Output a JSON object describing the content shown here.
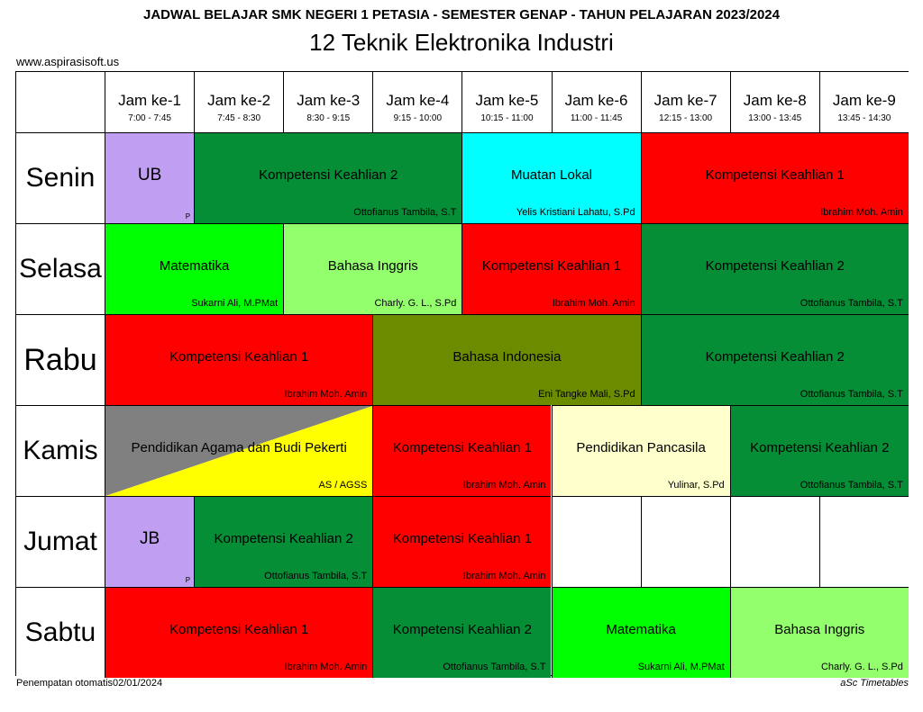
{
  "header": {
    "title": "JADWAL BELAJAR SMK NEGERI 1 PETASIA - SEMESTER GENAP - TAHUN PELAJARAN 2023/2024",
    "class_name": "12 Teknik Elektronika Industri",
    "website": "www.aspirasisoft.us"
  },
  "footer": {
    "left": "Penempatan otomatis02/01/2024",
    "right": "aSc Timetables"
  },
  "colors": {
    "ub_jb": "#c09ff2",
    "kk2": "#068e36",
    "muatan_lokal": "#00ffff",
    "kk1": "#fe0000",
    "matematika": "#00ff00",
    "bahasa_inggris": "#93ff6d",
    "bahasa_indonesia": "#6c8c00",
    "pendidikan_pancasila": "#ffffcc",
    "pab_gray": "#808080",
    "pab_yellow": "#ffff00"
  },
  "periods": [
    {
      "label": "Jam ke-1",
      "time": "7:00 - 7:45"
    },
    {
      "label": "Jam ke-2",
      "time": "7:45 - 8:30"
    },
    {
      "label": "Jam ke-3",
      "time": "8:30 - 9:15"
    },
    {
      "label": "Jam ke-4",
      "time": "9:15 - 10:00"
    },
    {
      "label": "Jam ke-5",
      "time": "10:15 - 11:00"
    },
    {
      "label": "Jam ke-6",
      "time": "11:00 - 11:45"
    },
    {
      "label": "Jam ke-7",
      "time": "12:15 - 13:00"
    },
    {
      "label": "Jam ke-8",
      "time": "13:00 - 13:45"
    },
    {
      "label": "Jam ke-9",
      "time": "13:45 - 14:30"
    }
  ],
  "days": [
    {
      "name": "Senin",
      "lessons": [
        {
          "start": 1,
          "span": 1,
          "subject": "UB",
          "teacher": "",
          "mark": "P",
          "color": "ub_jb"
        },
        {
          "start": 2,
          "span": 3,
          "subject": "Kompetensi Keahlian 2",
          "teacher": "Ottofianus Tambila, S.T",
          "color": "kk2"
        },
        {
          "start": 5,
          "span": 2,
          "subject": "Muatan Lokal",
          "teacher": "Yelis Kristiani Lahatu, S.Pd",
          "color": "muatan_lokal"
        },
        {
          "start": 7,
          "span": 3,
          "subject": "Kompetensi Keahlian 1",
          "teacher": "Ibrahim Moh. Amin",
          "color": "kk1"
        }
      ]
    },
    {
      "name": "Selasa",
      "lessons": [
        {
          "start": 1,
          "span": 2,
          "subject": "Matematika",
          "teacher": "Sukarni Ali, M.PMat",
          "color": "matematika"
        },
        {
          "start": 3,
          "span": 2,
          "subject": "Bahasa Inggris",
          "teacher": "Charly. G. L., S.Pd",
          "color": "bahasa_inggris"
        },
        {
          "start": 5,
          "span": 2,
          "subject": "Kompetensi Keahlian 1",
          "teacher": "Ibrahim Moh. Amin",
          "color": "kk1"
        },
        {
          "start": 7,
          "span": 3,
          "subject": "Kompetensi Keahlian 2",
          "teacher": "Ottofianus Tambila, S.T",
          "color": "kk2"
        }
      ]
    },
    {
      "name": "Rabu",
      "big": true,
      "lessons": [
        {
          "start": 1,
          "span": 3,
          "subject": "Kompetensi Keahlian 1",
          "teacher": "Ibrahim Moh. Amin",
          "color": "kk1"
        },
        {
          "start": 4,
          "span": 3,
          "subject": "Bahasa Indonesia",
          "teacher": "Eni Tangke Mali, S.Pd",
          "color": "bahasa_indonesia"
        },
        {
          "start": 7,
          "span": 3,
          "subject": "Kompetensi Keahlian 2",
          "teacher": "Ottofianus Tambila, S.T",
          "color": "kk2"
        }
      ]
    },
    {
      "name": "Kamis",
      "lessons": [
        {
          "start": 1,
          "span": 3,
          "subject": "Pendidikan Agama dan Budi Pekerti",
          "teacher": "AS / AGSS",
          "split": [
            "pab_gray",
            "pab_yellow"
          ]
        },
        {
          "start": 4,
          "span": 2,
          "subject": "Kompetensi Keahlian 1",
          "teacher": "Ibrahim Moh. Amin",
          "color": "kk1"
        },
        {
          "start": 6,
          "span": 2,
          "subject": "Pendidikan Pancasila",
          "teacher": "Yulinar, S.Pd",
          "color": "pendidikan_pancasila"
        },
        {
          "start": 8,
          "span": 2,
          "subject": "Kompetensi Keahlian 2",
          "teacher": "Ottofianus Tambila, S.T",
          "color": "kk2"
        }
      ]
    },
    {
      "name": "Jumat",
      "lessons": [
        {
          "start": 1,
          "span": 1,
          "subject": "JB",
          "teacher": "",
          "mark": "P",
          "color": "ub_jb"
        },
        {
          "start": 2,
          "span": 2,
          "subject": "Kompetensi Keahlian 2",
          "teacher": "Ottofianus Tambila, S.T",
          "color": "kk2"
        },
        {
          "start": 4,
          "span": 2,
          "subject": "Kompetensi Keahlian 1",
          "teacher": "Ibrahim Moh. Amin",
          "color": "kk1"
        }
      ]
    },
    {
      "name": "Sabtu",
      "lessons": [
        {
          "start": 1,
          "span": 3,
          "subject": "Kompetensi Keahlian 1",
          "teacher": "Ibrahim Moh. Amin",
          "color": "kk1"
        },
        {
          "start": 4,
          "span": 2,
          "subject": "Kompetensi Keahlian 2",
          "teacher": "Ottofianus Tambila, S.T",
          "color": "kk2"
        },
        {
          "start": 6,
          "span": 2,
          "subject": "Matematika",
          "teacher": "Sukarni Ali, M.PMat",
          "color": "matematika"
        },
        {
          "start": 8,
          "span": 2,
          "subject": "Bahasa Inggris",
          "teacher": "Charly. G. L., S.Pd",
          "color": "bahasa_inggris"
        }
      ]
    }
  ]
}
